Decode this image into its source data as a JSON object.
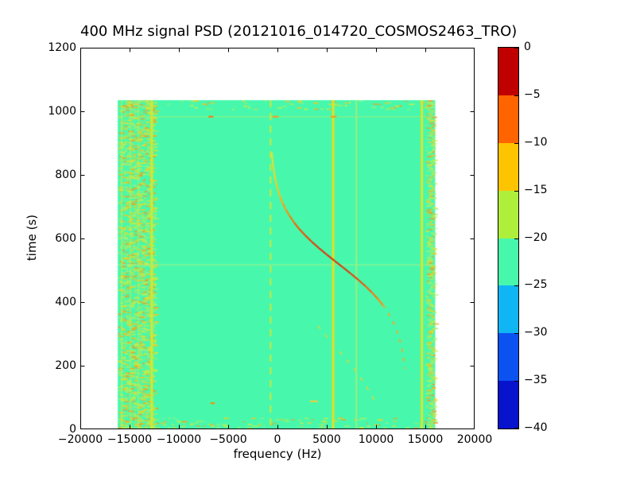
{
  "figure": {
    "background": "#ffffff"
  },
  "chart_data": {
    "type": "heatmap",
    "title": "400 MHz signal PSD (20121016_014720_COSMOS2463_TRO)",
    "xlabel": "frequency (Hz)",
    "ylabel": "time (s)",
    "xlim": [
      -20000,
      20000
    ],
    "ylim": [
      0,
      1200
    ],
    "x_ticks": [
      -20000,
      -15000,
      -10000,
      -5000,
      0,
      5000,
      10000,
      15000,
      20000
    ],
    "x_tick_labels": [
      "−20000",
      "−15000",
      "−10000",
      "−5000",
      "0",
      "5000",
      "10000",
      "15000",
      "20000"
    ],
    "y_ticks": [
      0,
      200,
      400,
      600,
      800,
      1000,
      1200
    ],
    "y_tick_labels": [
      "0",
      "200",
      "400",
      "600",
      "800",
      "1000",
      "1200"
    ],
    "grid": false,
    "colorbar": {
      "min_db": -40,
      "max_db": 0,
      "tick_labels": [
        "0",
        "−5",
        "−10",
        "−15",
        "−20",
        "−25",
        "−30",
        "−35",
        "−40"
      ],
      "segments_top_to_bottom": [
        "#c00000",
        "#ff6400",
        "#ffc400",
        "#aeef3c",
        "#47f8ac",
        "#10b6f4",
        "#0c52f0",
        "#0713cc"
      ]
    },
    "background_level_color": "#47f8ac",
    "data_extent": {
      "f_min": -16200,
      "f_max": 16000,
      "t_min": 0,
      "t_max": 1035
    },
    "speckle_palette": [
      "#b2f058",
      "#c9ee44",
      "#e3e030",
      "#f2ca1e",
      "#8df28a",
      "#f0a01e"
    ],
    "noise_bands": [
      {
        "label": "left-edge-noise-band",
        "f0": -16200,
        "f1": -12300,
        "density": 0.16
      },
      {
        "label": "right-edge-noise-band",
        "f0": 15050,
        "f1": 16000,
        "density": 0.14
      },
      {
        "label": "bottom-rows-noise",
        "f0": -16200,
        "f1": 16000,
        "t0": 0,
        "t1": 38,
        "density": 0.045
      },
      {
        "label": "top-rows-noise",
        "f0": -16200,
        "f1": 16000,
        "t0": 1008,
        "t1": 1035,
        "density": 0.035
      }
    ],
    "vlines": [
      {
        "f": -15800,
        "width": 2,
        "color": "#c4ee4e",
        "style": "solid",
        "alpha": 0.55
      },
      {
        "f": -14900,
        "width": 2,
        "color": "#c4ee4e",
        "style": "solid",
        "alpha": 0.5
      },
      {
        "f": -14100,
        "width": 2,
        "color": "#c4ee4e",
        "style": "solid",
        "alpha": 0.45
      },
      {
        "f": -12750,
        "width": 3,
        "color": "#d6e82c",
        "style": "solid",
        "alpha": 1
      },
      {
        "f": -700,
        "width": 2,
        "color": "#cfe838",
        "style": "dashed",
        "dash": [
          9,
          7
        ],
        "alpha": 0.95
      },
      {
        "f": 5650,
        "width": 3,
        "color": "#e6e022",
        "style": "solid",
        "alpha": 1
      },
      {
        "f": 8000,
        "width": 2,
        "color": "#a6ec74",
        "style": "solid",
        "alpha": 0.9
      },
      {
        "f": 14650,
        "width": 3,
        "color": "#d6e82c",
        "style": "solid",
        "alpha": 1
      }
    ],
    "hlines": [
      {
        "t": 983,
        "color": "#bdeb6e",
        "alpha": 0.5
      },
      {
        "t": 517,
        "color": "#b9ee82",
        "alpha": 0.6
      }
    ],
    "bursts": [
      {
        "t": 983,
        "f0": -7000,
        "f1": -6500,
        "color": "#f08018"
      },
      {
        "t": 983,
        "f0": -500,
        "f1": 100,
        "color": "#f0a01c"
      },
      {
        "t": 983,
        "f0": 5400,
        "f1": 6000,
        "color": "#f0a01c"
      },
      {
        "t": 82,
        "f0": -6800,
        "f1": -6350,
        "color": "#f09018"
      },
      {
        "t": 88,
        "f0": 3300,
        "f1": 4100,
        "color": "#e8d040"
      }
    ],
    "doppler_track": {
      "label": "satellite-doppler-trace",
      "points_t_f_color": [
        [
          870,
          -570,
          "#d8e838"
        ],
        [
          850,
          -520,
          "#d8e838"
        ],
        [
          830,
          -450,
          "#dde434"
        ],
        [
          810,
          -350,
          "#e2de30"
        ],
        [
          790,
          -240,
          "#e6da2c"
        ],
        [
          770,
          -100,
          "#ecd226"
        ],
        [
          750,
          80,
          "#f0ca22"
        ],
        [
          730,
          290,
          "#f4c41c"
        ],
        [
          710,
          550,
          "#f6b41a"
        ],
        [
          690,
          870,
          "#f8a018"
        ],
        [
          670,
          1250,
          "#f89010"
        ],
        [
          650,
          1690,
          "#f8780a"
        ],
        [
          630,
          2210,
          "#f46608"
        ],
        [
          610,
          2810,
          "#f05407"
        ],
        [
          590,
          3470,
          "#ec4406"
        ],
        [
          570,
          4200,
          "#e83807"
        ],
        [
          550,
          4980,
          "#e43008"
        ],
        [
          530,
          5790,
          "#e22e08"
        ],
        [
          510,
          6610,
          "#e23008"
        ],
        [
          490,
          7420,
          "#e43409"
        ],
        [
          470,
          8200,
          "#ea400a"
        ],
        [
          450,
          8930,
          "#f0540c"
        ],
        [
          430,
          9590,
          "#f4660e"
        ],
        [
          410,
          10190,
          "#f87c12"
        ],
        [
          390,
          10710,
          "#f89018"
        ]
      ],
      "tail_points_t_f": [
        [
          390,
          10710
        ],
        [
          370,
          11150
        ],
        [
          350,
          11530
        ],
        [
          330,
          11850
        ],
        [
          310,
          12110
        ],
        [
          290,
          12320
        ],
        [
          270,
          12500
        ],
        [
          250,
          12640
        ],
        [
          230,
          12750
        ],
        [
          210,
          12850
        ],
        [
          190,
          12920
        ]
      ],
      "tail_color": "#f0ac28",
      "tail_dash": [
        4,
        8
      ]
    },
    "secondary_track": {
      "label": "faint-secondary-trace",
      "points_t_f": [
        [
          325,
          4100
        ],
        [
          280,
          5300
        ],
        [
          230,
          6700
        ],
        [
          192,
          7750
        ],
        [
          150,
          8700
        ],
        [
          115,
          9400
        ],
        [
          75,
          10150
        ]
      ],
      "color": "#ddd835",
      "dash": [
        5,
        9
      ],
      "width": 1.5
    }
  }
}
